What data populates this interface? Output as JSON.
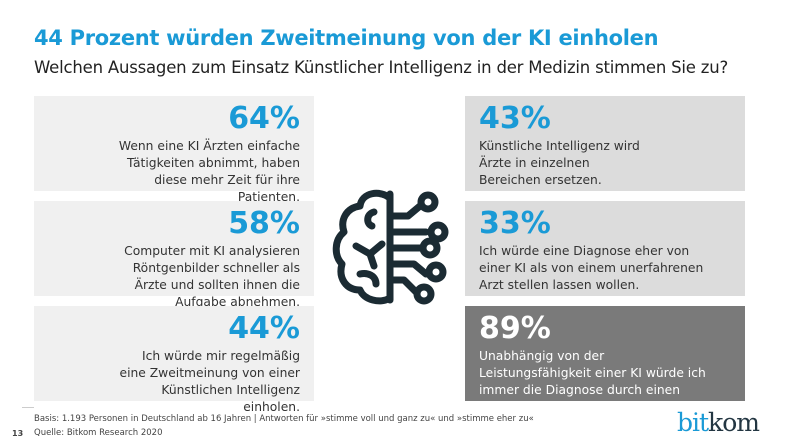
{
  "title": "44 Prozent würden Zweitmeinung von der KI einholen",
  "subtitle": "Welchen Aussagen zum Einsatz Künstlicher Intelligenz in der Medizin stimmen Sie zu?",
  "colors": {
    "accent": "#1a9ad6",
    "dark_box": "#7a7a7a",
    "icon": "#1b2b33"
  },
  "left": [
    {
      "value": "64%",
      "text": "Wenn eine KI Ärzten einfache Tätigkeiten abnimmt, haben diese mehr Zeit für ihre Patienten."
    },
    {
      "value": "58%",
      "text": "Computer mit KI analysieren Röntgenbilder schneller als Ärzte und sollten ihnen die Aufgabe abnehmen."
    },
    {
      "value": "44%",
      "text": "Ich würde mir regelmäßig eine Zweitmeinung von einer Künstlichen Intelligenz einholen."
    }
  ],
  "right": [
    {
      "value": "43%",
      "text": "Künstliche Intelligenz wird Ärzte in einzelnen Bereichen ersetzen."
    },
    {
      "value": "33%",
      "text": "Ich würde eine Diagnose eher von einer KI als von einem unerfahrenen Arzt stellen lassen wollen."
    },
    {
      "value": "89%",
      "text": "Unabhängig von der Leistungsfähigkeit einer KI würde ich immer die Diagnose durch einen Menschen bevorzugen."
    }
  ],
  "icon": "brain-circuit-icon",
  "footer": {
    "basis": "Basis: 1.193 Personen in Deutschland ab 16 Jahren | Antworten für »stimme voll und ganz zu« und »stimme eher zu«",
    "source": "Quelle: Bitkom Research 2020",
    "page": "13"
  },
  "logo": {
    "part1": "bit",
    "part2": "kom"
  }
}
